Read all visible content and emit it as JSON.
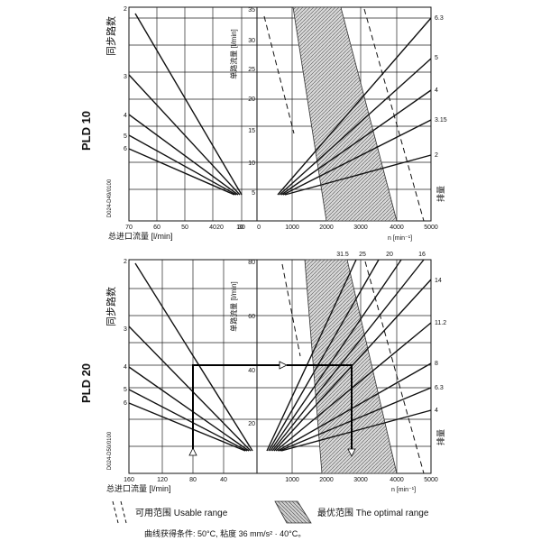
{
  "chart_data": [
    {
      "type": "line",
      "title": "PLD 10",
      "left_axis": {
        "label": "总进口流量 [l/min]",
        "ticks": [
          70,
          60,
          50,
          40,
          30,
          20,
          10
        ]
      },
      "left_ylabel": "同步路数",
      "left_y_ticks": [
        "2",
        "3",
        "4",
        "5",
        "6"
      ],
      "middle_axis": {
        "label": "单路流量 [l/min]",
        "ticks": [
          35,
          30,
          25,
          20,
          15,
          10,
          5,
          0
        ]
      },
      "speed_axis": {
        "label": "n [min⁻¹]",
        "ticks": [
          1000,
          2000,
          3000,
          4000,
          5000
        ]
      },
      "right_label": "排量",
      "right_ticks": [
        "6.3",
        "5",
        "4",
        "3.15",
        "2"
      ],
      "code": "D024-D49/0100"
    },
    {
      "type": "line",
      "title": "PLD 20",
      "left_axis": {
        "label": "总进口流量 [l/min]",
        "ticks": [
          160,
          120,
          80,
          40
        ]
      },
      "left_ylabel": "同步路数",
      "left_y_ticks": [
        "2",
        "3",
        "4",
        "5",
        "6"
      ],
      "middle_axis": {
        "label": "单路流量 [l/min]",
        "ticks": [
          80,
          60,
          40,
          20
        ]
      },
      "speed_axis": {
        "label": "n [min⁻¹]",
        "ticks": [
          1000,
          2000,
          3000,
          4000,
          5000
        ]
      },
      "top_ticks": [
        "31.5",
        "25",
        "20",
        "16"
      ],
      "right_label": "排量",
      "right_ticks": [
        "14",
        "11.2",
        "8",
        "6.3",
        "4"
      ],
      "code": "D024-D50/0100"
    }
  ],
  "legend": {
    "usable": "可用范围  Usable range",
    "optimal": "最优范围  The optimal range"
  },
  "footnote": "曲线获得条件: 50°C, 粘度 36 mm/s² · 40°C。"
}
